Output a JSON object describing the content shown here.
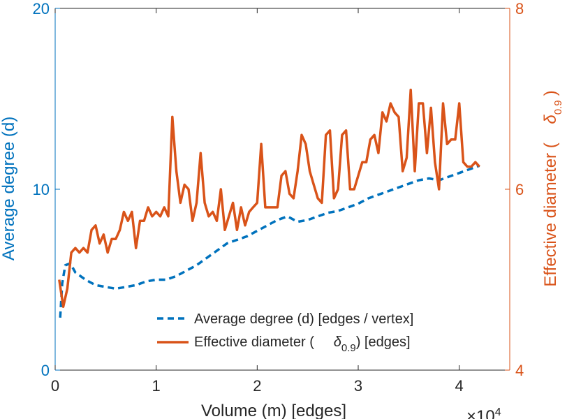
{
  "chart_data": {
    "type": "line",
    "title": "",
    "xlabel": "Volume (m) [edges]",
    "x_exponent_label": "×10",
    "x_exponent": "4",
    "ylabel_left": "Average degree (d)",
    "ylabel_right_prefix": "Effective diameter (",
    "ylabel_right_symbol": "δ",
    "ylabel_right_subscript": "0.9",
    "ylabel_right_suffix": ")",
    "xlim": [
      0,
      4.5
    ],
    "ylim_left": [
      0,
      20
    ],
    "ylim_right": [
      4,
      8
    ],
    "xticks": [
      0,
      1,
      2,
      3,
      4
    ],
    "yticks_left": [
      0,
      10,
      20
    ],
    "yticks_right": [
      4,
      6,
      8
    ],
    "colors": {
      "left_axis": "#0072BD",
      "right_axis": "#D95319",
      "frame": "#262626"
    },
    "legend": {
      "position": "bottom-right",
      "entry1": "Average degree (d) [edges / vertex]",
      "entry2_prefix": "Effective diameter (",
      "entry2_symbol": "δ",
      "entry2_subscript": "0.9",
      "entry2_suffix": ") [edges]"
    },
    "series": [
      {
        "name": "Average degree (d) [edges / vertex]",
        "axis": "left",
        "style": "dashed",
        "color": "#0072BD",
        "x": [
          0.05,
          0.07,
          0.1,
          0.15,
          0.2,
          0.25,
          0.3,
          0.4,
          0.5,
          0.6,
          0.7,
          0.8,
          0.9,
          1.0,
          1.1,
          1.2,
          1.3,
          1.4,
          1.5,
          1.6,
          1.7,
          1.8,
          1.9,
          2.0,
          2.1,
          2.2,
          2.3,
          2.4,
          2.5,
          2.6,
          2.7,
          2.8,
          2.9,
          3.0,
          3.1,
          3.2,
          3.3,
          3.4,
          3.5,
          3.6,
          3.7,
          3.8,
          3.9,
          4.0,
          4.1,
          4.2
        ],
        "y": [
          2.9,
          4.8,
          5.8,
          5.9,
          5.4,
          5.2,
          5.0,
          4.7,
          4.6,
          4.5,
          4.6,
          4.7,
          4.9,
          5.0,
          5.0,
          5.2,
          5.5,
          5.8,
          6.2,
          6.6,
          7.0,
          7.2,
          7.4,
          7.7,
          8.0,
          8.3,
          8.5,
          8.2,
          8.3,
          8.5,
          8.7,
          8.8,
          9.0,
          9.2,
          9.5,
          9.7,
          9.9,
          10.1,
          10.3,
          10.5,
          10.6,
          10.5,
          10.7,
          10.9,
          11.1,
          11.3
        ]
      },
      {
        "name": "Effective diameter (δ 0.9) [edges]",
        "axis": "right",
        "style": "solid",
        "color": "#D95319",
        "x": [
          0.04,
          0.08,
          0.12,
          0.16,
          0.2,
          0.24,
          0.28,
          0.32,
          0.36,
          0.4,
          0.44,
          0.48,
          0.52,
          0.56,
          0.6,
          0.64,
          0.68,
          0.72,
          0.76,
          0.8,
          0.84,
          0.88,
          0.92,
          0.96,
          1.0,
          1.04,
          1.08,
          1.12,
          1.16,
          1.2,
          1.24,
          1.28,
          1.32,
          1.36,
          1.4,
          1.44,
          1.48,
          1.52,
          1.56,
          1.6,
          1.64,
          1.68,
          1.72,
          1.76,
          1.8,
          1.84,
          1.88,
          1.92,
          1.96,
          2.0,
          2.04,
          2.08,
          2.12,
          2.16,
          2.2,
          2.24,
          2.28,
          2.32,
          2.36,
          2.4,
          2.44,
          2.48,
          2.52,
          2.56,
          2.6,
          2.64,
          2.68,
          2.72,
          2.76,
          2.8,
          2.84,
          2.88,
          2.92,
          2.96,
          3.0,
          3.04,
          3.08,
          3.12,
          3.16,
          3.2,
          3.24,
          3.28,
          3.32,
          3.36,
          3.4,
          3.44,
          3.48,
          3.52,
          3.56,
          3.6,
          3.64,
          3.68,
          3.72,
          3.76,
          3.8,
          3.84,
          3.88,
          3.92,
          3.96,
          4.0,
          4.04,
          4.08,
          4.12,
          4.16,
          4.2
        ],
        "y": [
          5.0,
          4.7,
          4.9,
          5.3,
          5.35,
          5.3,
          5.35,
          5.3,
          5.55,
          5.6,
          5.4,
          5.5,
          5.3,
          5.45,
          5.45,
          5.55,
          5.75,
          5.65,
          5.75,
          5.35,
          5.65,
          5.65,
          5.8,
          5.7,
          5.75,
          5.7,
          5.8,
          5.7,
          6.8,
          6.2,
          5.85,
          6.05,
          6.0,
          5.65,
          5.85,
          6.4,
          5.85,
          5.7,
          5.75,
          5.65,
          6.0,
          5.55,
          5.7,
          5.85,
          5.55,
          5.8,
          5.6,
          5.75,
          5.8,
          5.85,
          6.5,
          5.8,
          5.8,
          5.8,
          5.8,
          6.15,
          6.2,
          5.95,
          5.9,
          6.2,
          6.6,
          6.5,
          6.2,
          6.05,
          5.9,
          5.85,
          6.6,
          6.65,
          5.9,
          6.0,
          6.6,
          6.65,
          6.0,
          6.0,
          6.15,
          6.3,
          6.3,
          6.55,
          6.6,
          6.4,
          6.85,
          6.75,
          6.95,
          6.85,
          6.8,
          6.2,
          6.35,
          7.1,
          6.2,
          6.95,
          6.95,
          6.4,
          6.9,
          6.3,
          6.0,
          6.95,
          6.5,
          6.55,
          6.55,
          6.95,
          6.3,
          6.25,
          6.25,
          6.3,
          6.25
        ]
      }
    ]
  }
}
